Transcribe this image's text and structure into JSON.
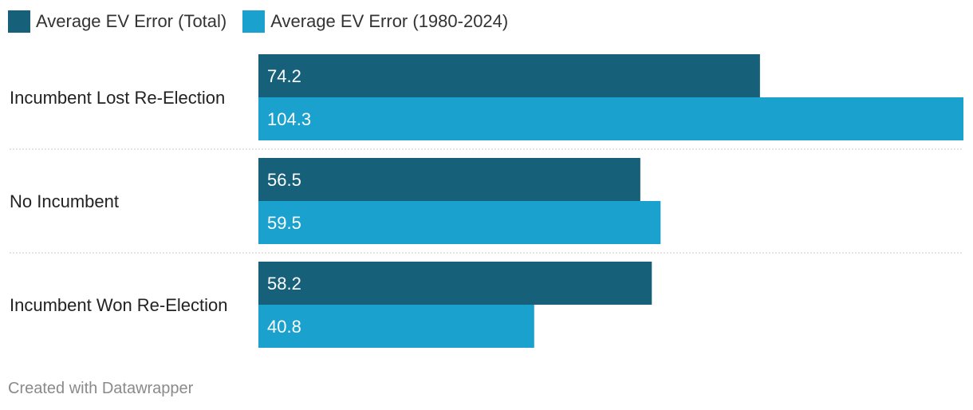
{
  "legend": {
    "series_1": "Average EV Error (Total)",
    "series_2": "Average EV Error (1980-2024)"
  },
  "footer": {
    "credit": "Created with Datawrapper"
  },
  "chart_data": {
    "type": "bar",
    "orientation": "horizontal",
    "categories": [
      "Incumbent Lost Re-Election",
      "No Incumbent",
      "Incumbent Won Re-Election"
    ],
    "series": [
      {
        "name": "Average EV Error (Total)",
        "values": [
          74.2,
          56.5,
          58.2
        ],
        "color": "#17607a"
      },
      {
        "name": "Average EV Error (1980-2024)",
        "values": [
          104.3,
          59.5,
          40.8
        ],
        "color": "#1aa1cd"
      }
    ],
    "value_labels": [
      [
        "74.2",
        "56.5",
        "58.2"
      ],
      [
        "104.3",
        "59.5",
        "40.8"
      ]
    ],
    "xlim": [
      0,
      104.3
    ],
    "grid": false,
    "legend_position": "top-left"
  }
}
